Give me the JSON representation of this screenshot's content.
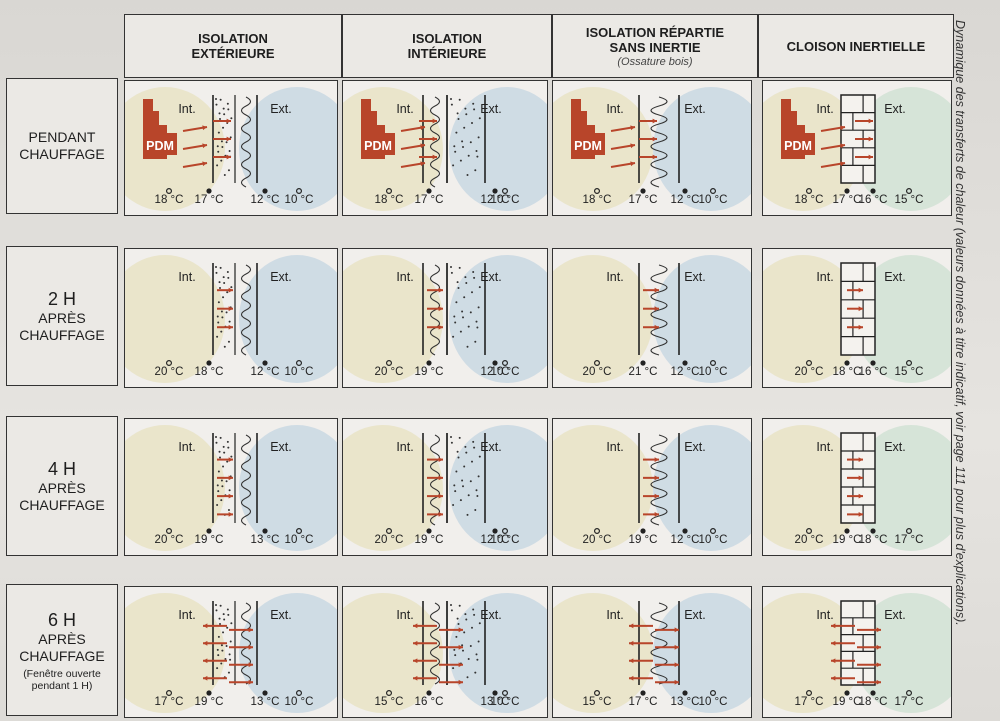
{
  "columns": [
    {
      "title": "ISOLATION\nEXTÉRIEURE",
      "subtitle": ""
    },
    {
      "title": "ISOLATION\nINTÉRIEURE",
      "subtitle": ""
    },
    {
      "title": "ISOLATION RÉPARTIE\nSANS INERTIE",
      "subtitle": "(Ossature bois)"
    },
    {
      "title": "CLOISON INERTIELLE",
      "subtitle": ""
    }
  ],
  "rows": [
    {
      "label": "PENDANT\nCHAUFFAGE",
      "note": ""
    },
    {
      "label": "2 H",
      "sub": "APRÈS\nCHAUFFAGE",
      "note": ""
    },
    {
      "label": "4 H",
      "sub": "APRÈS\nCHAUFFAGE",
      "note": ""
    },
    {
      "label": "6 H",
      "sub": "APRÈS\nCHAUFFAGE",
      "note": "(Fenêtre ouverte\npendant 1 H)"
    }
  ],
  "labels": {
    "int": "Int.",
    "ext": "Ext.",
    "pdm": "PDM"
  },
  "temps": [
    [
      [
        "18 °C",
        "17 °C",
        "12 °C",
        "10 °C"
      ],
      [
        "18 °C",
        "17 °C",
        "12 °C",
        "10 °C"
      ],
      [
        "18 °C",
        "17 °C",
        "12 °C",
        "10 °C"
      ],
      [
        "18 °C",
        "17 °C",
        "16 °C",
        "15 °C"
      ]
    ],
    [
      [
        "20 °C",
        "18 °C",
        "12 °C",
        "10 °C"
      ],
      [
        "20 °C",
        "19 °C",
        "12 °C",
        "10 °C"
      ],
      [
        "20 °C",
        "21 °C",
        "12 °C",
        "10 °C"
      ],
      [
        "20 °C",
        "18 °C",
        "16 °C",
        "15 °C"
      ]
    ],
    [
      [
        "20 °C",
        "19 °C",
        "13 °C",
        "10 °C"
      ],
      [
        "20 °C",
        "19 °C",
        "12 °C",
        "10 °C"
      ],
      [
        "20 °C",
        "19 °C",
        "12 °C",
        "10 °C"
      ],
      [
        "20 °C",
        "19 °C",
        "18 °C",
        "17 °C"
      ]
    ],
    [
      [
        "17 °C",
        "19 °C",
        "13 °C",
        "10 °C"
      ],
      [
        "15 °C",
        "16 °C",
        "13 °C",
        "10 °C"
      ],
      [
        "15 °C",
        "17 °C",
        "13 °C",
        "10 °C"
      ],
      [
        "17 °C",
        "19 °C",
        "18 °C",
        "17 °C"
      ]
    ]
  ],
  "side_note": "Dynamique des transferts de chaleur (valeurs données à titre indicatif, voir page 111 pour plus d'explications).",
  "colors": {
    "arrow": "#b8452a",
    "int_zone": "#e3dcb0",
    "ext_zone": "#b9cfe0",
    "inertial_ext": "#c4dccb"
  }
}
